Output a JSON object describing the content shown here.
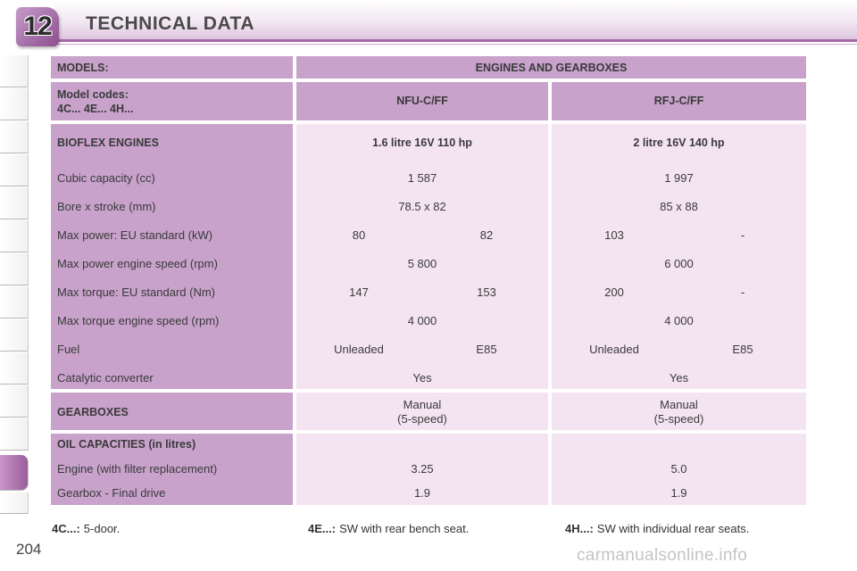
{
  "header": {
    "chapter_number": "12",
    "title": "TECHNICAL DATA"
  },
  "table": {
    "models_label": "MODELS:",
    "engines_gearboxes_label": "ENGINES AND GEARBOXES",
    "model_codes_line1": "Model codes:",
    "model_codes_line2": "4C... 4E... 4H...",
    "engine_codes": [
      "NFU-C/FF",
      "RFJ-C/FF"
    ],
    "bioflex_label": "BIOFLEX ENGINES",
    "engine_names": [
      "1.6 litre 16V 110 hp",
      "2 litre 16V 140 hp"
    ],
    "rows": [
      {
        "label": "Cubic capacity (cc)",
        "v1": "1 587",
        "v2": "1 997"
      },
      {
        "label": "Bore x stroke (mm)",
        "v1": "78.5 x 82",
        "v2": "85 x 88"
      },
      {
        "label": "Max power: EU standard (kW)",
        "v1a": "80",
        "v1b": "82",
        "v2a": "103",
        "v2b": "-"
      },
      {
        "label": "Max power engine speed (rpm)",
        "v1": "5 800",
        "v2": "6 000"
      },
      {
        "label": "Max torque: EU standard (Nm)",
        "v1a": "147",
        "v1b": "153",
        "v2a": "200",
        "v2b": "-"
      },
      {
        "label": "Max torque engine speed (rpm)",
        "v1": "4 000",
        "v2": "4 000"
      },
      {
        "label": "Fuel",
        "v1a": "Unleaded",
        "v1b": "E85",
        "v2a": "Unleaded",
        "v2b": "E85"
      },
      {
        "label": "Catalytic converter",
        "v1": "Yes",
        "v2": "Yes"
      }
    ],
    "gearboxes_label": "GEARBOXES",
    "gearbox_values": [
      {
        "line1": "Manual",
        "line2": "(5-speed)"
      },
      {
        "line1": "Manual",
        "line2": "(5-speed)"
      }
    ],
    "oil_label": "OIL CAPACITIES (in litres)",
    "oil_rows": [
      {
        "label": "Engine (with filter replacement)",
        "v1": "3.25",
        "v2": "5.0"
      },
      {
        "label": "Gearbox - Final drive",
        "v1": "1.9",
        "v2": "1.9"
      }
    ]
  },
  "footnotes": [
    {
      "key": "4C...:",
      "text": "5-door."
    },
    {
      "key": "4E...:",
      "text": "SW with rear bench seat."
    },
    {
      "key": "4H...:",
      "text": "SW with individual rear seats."
    }
  ],
  "page_number": "204",
  "watermark": "carmanualsonline.info",
  "colors": {
    "accent": "#a86aa9",
    "label_cell": "#c8a2cb",
    "value_cell": "#f4e4f1"
  }
}
